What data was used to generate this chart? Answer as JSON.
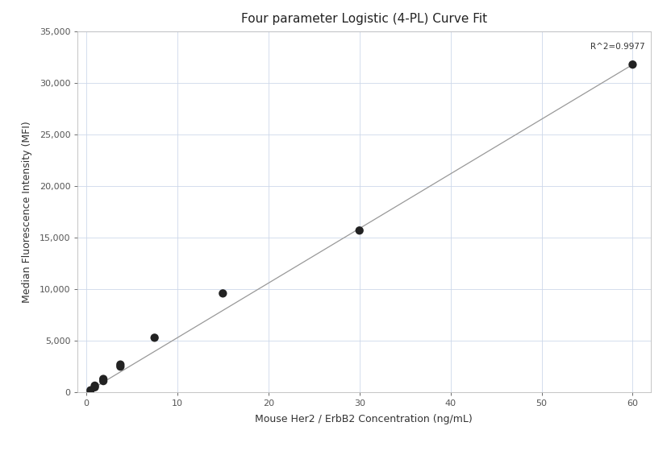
{
  "title": "Four parameter Logistic (4-PL) Curve Fit",
  "xlabel": "Mouse Her2 / ErbB2 Concentration (ng/mL)",
  "ylabel": "Median Fluorescence Intensity (MFI)",
  "scatter_x": [
    0.469,
    0.938,
    0.938,
    1.875,
    1.875,
    3.75,
    3.75,
    7.5,
    15.0,
    30.0,
    60.0
  ],
  "scatter_y": [
    200,
    500,
    650,
    1100,
    1300,
    2500,
    2700,
    5300,
    9600,
    15700,
    31800
  ],
  "r_squared": "R^2=0.9977",
  "xlim": [
    -1,
    62
  ],
  "ylim": [
    0,
    35000
  ],
  "xticks": [
    0,
    10,
    20,
    30,
    40,
    50,
    60
  ],
  "yticks": [
    0,
    5000,
    10000,
    15000,
    20000,
    25000,
    30000,
    35000
  ],
  "scatter_color": "#222222",
  "line_color": "#999999",
  "background_color": "#ffffff",
  "grid_color": "#cdd8ea",
  "title_fontsize": 11,
  "label_fontsize": 9,
  "tick_fontsize": 8,
  "annotation_fontsize": 7.5,
  "marker_size": 55,
  "line_x": [
    0,
    60
  ],
  "line_y": [
    0,
    31800
  ]
}
